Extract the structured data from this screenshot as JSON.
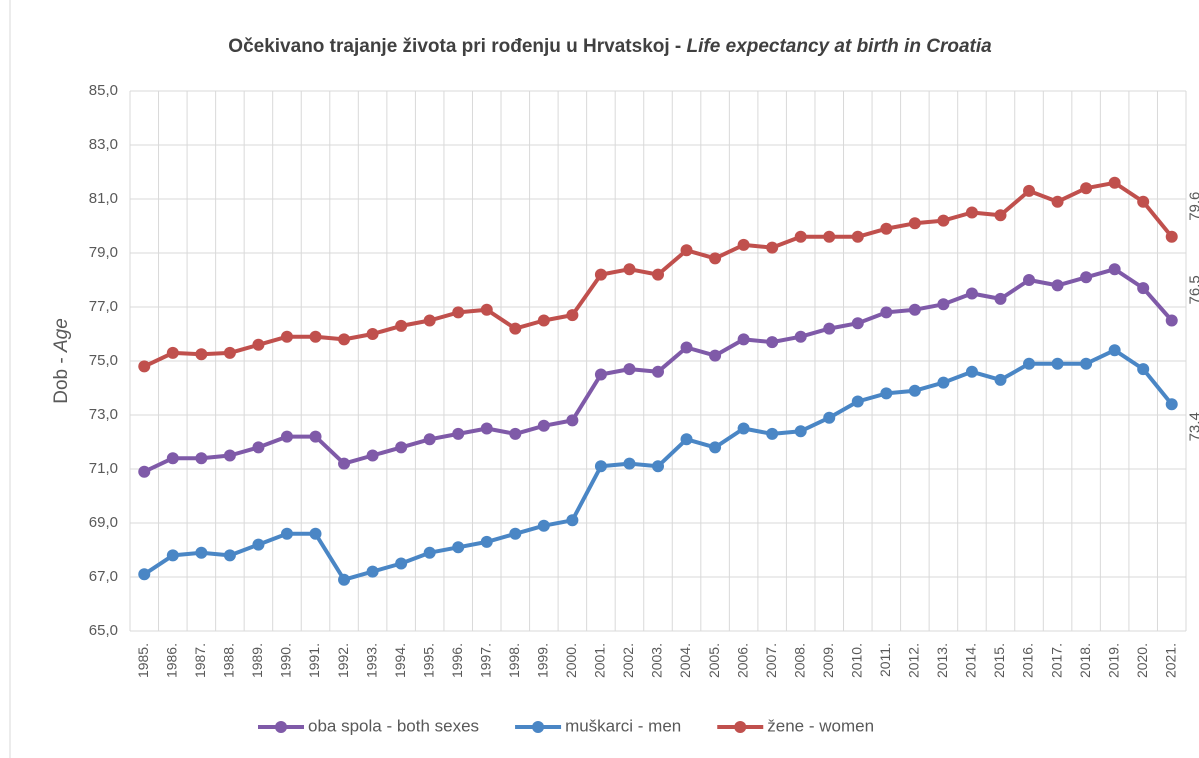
{
  "chart_data": {
    "type": "line",
    "title": "Očekivano trajanje života pri rođenju u Hrvatskoj - ",
    "title_italic": "Life expectancy at birth in Croatia",
    "y_label": "Dob - ",
    "y_label_italic": "Age",
    "categories": [
      "1985.",
      "1986.",
      "1987.",
      "1988.",
      "1989.",
      "1990.",
      "1991.",
      "1992.",
      "1993.",
      "1994.",
      "1995.",
      "1996.",
      "1997.",
      "1998.",
      "1999.",
      "2000.",
      "2001.",
      "2002.",
      "2003.",
      "2004.",
      "2005.",
      "2006.",
      "2007.",
      "2008.",
      "2009.",
      "2010.",
      "2011.",
      "2012.",
      "2013.",
      "2014.",
      "2015.",
      "2016.",
      "2017.",
      "2018.",
      "2019.",
      "2020.",
      "2021."
    ],
    "ylim": [
      65,
      85
    ],
    "yticks": [
      {
        "value": 65,
        "label": "65,0"
      },
      {
        "value": 67,
        "label": "67,0"
      },
      {
        "value": 69,
        "label": "69,0"
      },
      {
        "value": 71,
        "label": "71,0"
      },
      {
        "value": 73,
        "label": "73,0"
      },
      {
        "value": 75,
        "label": "75,0"
      },
      {
        "value": 77,
        "label": "77,0"
      },
      {
        "value": 79,
        "label": "79,0"
      },
      {
        "value": 81,
        "label": "81,0"
      },
      {
        "value": 83,
        "label": "83,0"
      },
      {
        "value": 85,
        "label": "85,0"
      }
    ],
    "grid": true,
    "legend": "bottom",
    "series": [
      {
        "name": "oba spola - both sexes",
        "color": "#7f5aa8",
        "values": [
          70.9,
          71.4,
          71.4,
          71.5,
          71.8,
          72.2,
          72.2,
          71.2,
          71.5,
          71.8,
          72.1,
          72.3,
          72.5,
          72.3,
          72.6,
          72.8,
          74.5,
          74.7,
          74.6,
          75.5,
          75.2,
          75.8,
          75.7,
          75.9,
          76.2,
          76.4,
          76.8,
          76.9,
          77.1,
          77.5,
          77.3,
          78.0,
          77.8,
          78.1,
          78.4,
          77.7,
          76.5
        ],
        "value_labels": [
          null,
          null,
          null,
          null,
          null,
          null,
          null,
          null,
          null,
          null,
          null,
          null,
          null,
          null,
          null,
          null,
          null,
          null,
          null,
          null,
          null,
          null,
          null,
          null,
          null,
          null,
          null,
          null,
          null,
          null,
          null,
          null,
          null,
          null,
          null,
          null,
          "76,5"
        ]
      },
      {
        "name": "muškarci - men",
        "color": "#4a86c5",
        "values": [
          67.1,
          67.8,
          67.9,
          67.8,
          68.2,
          68.6,
          68.6,
          66.9,
          67.2,
          67.5,
          67.9,
          68.1,
          68.3,
          68.6,
          68.9,
          69.1,
          71.1,
          71.2,
          71.1,
          72.1,
          71.8,
          72.5,
          72.3,
          72.4,
          72.9,
          73.5,
          73.8,
          73.9,
          74.2,
          74.6,
          74.3,
          74.9,
          74.9,
          74.9,
          75.4,
          74.7,
          73.4
        ],
        "value_labels": [
          null,
          null,
          null,
          null,
          null,
          null,
          null,
          null,
          null,
          null,
          null,
          null,
          null,
          null,
          null,
          null,
          null,
          null,
          null,
          null,
          null,
          null,
          null,
          null,
          null,
          null,
          null,
          null,
          null,
          null,
          null,
          null,
          null,
          null,
          null,
          null,
          "73,4"
        ]
      },
      {
        "name": "žene - women",
        "color": "#c0504d",
        "values": [
          74.8,
          75.3,
          75.25,
          75.3,
          75.6,
          75.9,
          75.9,
          75.8,
          76.0,
          76.3,
          76.5,
          76.8,
          76.9,
          76.2,
          76.5,
          76.7,
          78.2,
          78.4,
          78.2,
          79.1,
          78.8,
          79.3,
          79.2,
          79.6,
          79.6,
          79.6,
          79.9,
          80.1,
          80.2,
          80.5,
          80.4,
          81.3,
          80.9,
          81.4,
          81.6,
          80.9,
          79.6
        ],
        "value_labels": [
          null,
          null,
          null,
          null,
          null,
          null,
          null,
          null,
          null,
          null,
          null,
          null,
          null,
          null,
          null,
          null,
          null,
          null,
          null,
          null,
          null,
          null,
          null,
          null,
          null,
          null,
          null,
          null,
          null,
          null,
          null,
          null,
          null,
          null,
          null,
          null,
          "79,6"
        ]
      }
    ]
  }
}
